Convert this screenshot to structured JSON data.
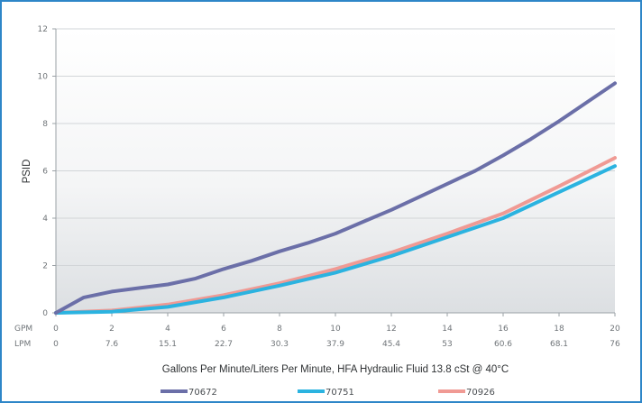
{
  "chart_data": {
    "type": "line",
    "title": "",
    "xlabel": "Gallons Per Minute/Liters Per Minute, HFA Hydraulic Fluid 13.8 cSt @ 40°C",
    "ylabel": "PSID",
    "x_unit_labels": [
      "GPM",
      "LPM"
    ],
    "x": [
      0,
      2,
      4,
      6,
      8,
      10,
      12,
      14,
      16,
      18,
      20
    ],
    "x_secondary": [
      "0",
      "7.6",
      "15.1",
      "22.7",
      "30.3",
      "37.9",
      "45.4",
      "53",
      "60.6",
      "68.1",
      "76"
    ],
    "xlim": [
      0,
      20
    ],
    "ylim": [
      0,
      12
    ],
    "yticks": [
      0,
      2,
      4,
      6,
      8,
      10,
      12
    ],
    "grid": "horizontal",
    "legend_position": "bottom",
    "series": [
      {
        "name": "70672",
        "color": "#6b6fa8",
        "points": [
          [
            0,
            0
          ],
          [
            1,
            0.65
          ],
          [
            2,
            0.9
          ],
          [
            3,
            1.05
          ],
          [
            4,
            1.2
          ],
          [
            5,
            1.45
          ],
          [
            6,
            1.85
          ],
          [
            7,
            2.2
          ],
          [
            8,
            2.6
          ],
          [
            9,
            2.95
          ],
          [
            10,
            3.35
          ],
          [
            11,
            3.85
          ],
          [
            12,
            4.35
          ],
          [
            13,
            4.9
          ],
          [
            14,
            5.45
          ],
          [
            15,
            6.0
          ],
          [
            16,
            6.65
          ],
          [
            17,
            7.35
          ],
          [
            18,
            8.1
          ],
          [
            19,
            8.9
          ],
          [
            20,
            9.7
          ]
        ]
      },
      {
        "name": "70751",
        "color": "#2bb3e0",
        "points": [
          [
            0,
            0
          ],
          [
            2,
            0.05
          ],
          [
            4,
            0.25
          ],
          [
            6,
            0.65
          ],
          [
            8,
            1.15
          ],
          [
            10,
            1.7
          ],
          [
            12,
            2.4
          ],
          [
            14,
            3.2
          ],
          [
            16,
            4.0
          ],
          [
            18,
            5.1
          ],
          [
            20,
            6.2
          ]
        ]
      },
      {
        "name": "70926",
        "color": "#f09a94",
        "points": [
          [
            0,
            0
          ],
          [
            2,
            0.1
          ],
          [
            4,
            0.35
          ],
          [
            6,
            0.75
          ],
          [
            8,
            1.25
          ],
          [
            10,
            1.85
          ],
          [
            12,
            2.55
          ],
          [
            14,
            3.35
          ],
          [
            16,
            4.2
          ],
          [
            18,
            5.35
          ],
          [
            20,
            6.55
          ]
        ]
      }
    ]
  }
}
